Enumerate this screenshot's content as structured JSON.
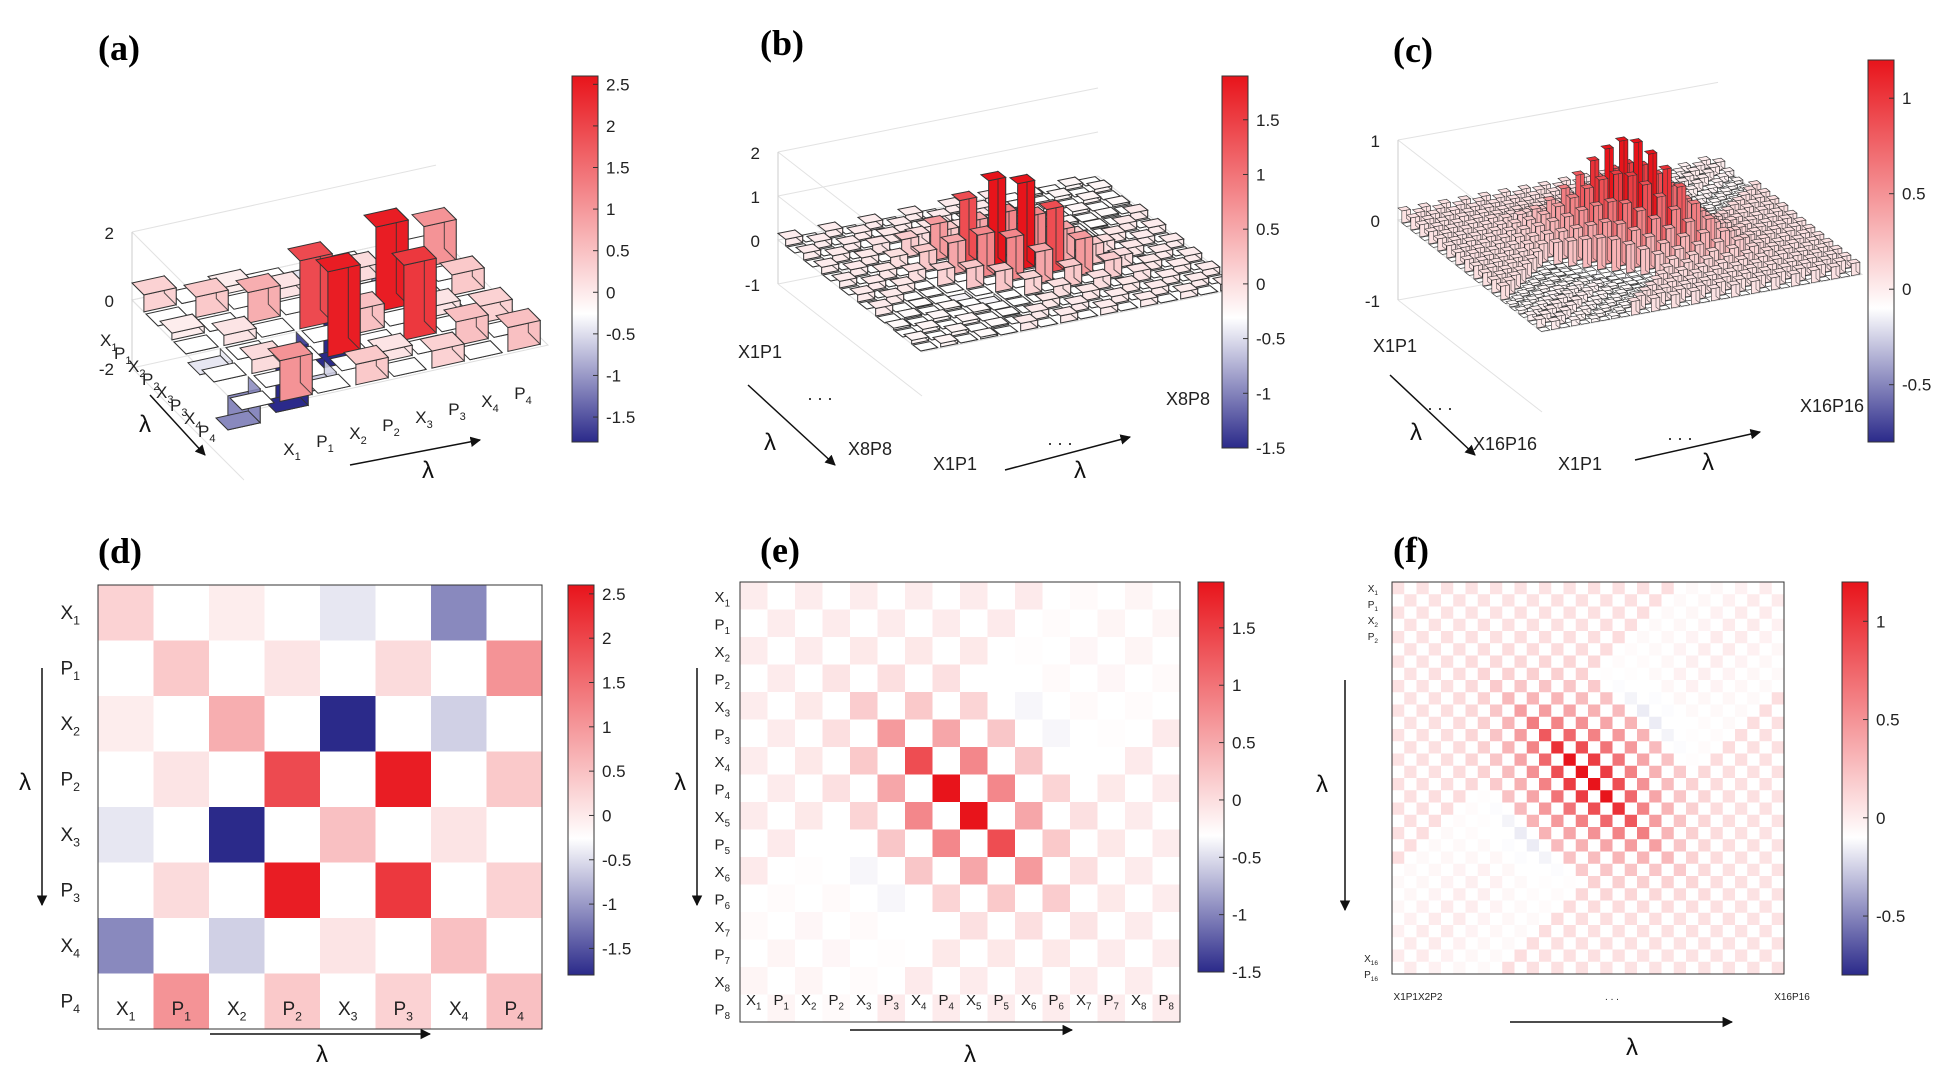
{
  "figure_title": "",
  "chart_data": [
    {
      "panel": "(a)",
      "type": "bar3d",
      "labels": [
        "X1",
        "P1",
        "X2",
        "P2",
        "X3",
        "P3",
        "X4",
        "P4"
      ],
      "zticks": [
        "-2",
        "0",
        "2"
      ],
      "zlim": [
        -2,
        2.6
      ],
      "colorbar": {
        "ticks": [
          "2.5",
          "2",
          "1.5",
          "1",
          "0.5",
          "0",
          "-0.5",
          "-1",
          "-1.5"
        ],
        "range": [
          -1.8,
          2.6
        ]
      },
      "values": [
        [
          0.5,
          0,
          0.2,
          0,
          -0.2,
          0,
          -1.0,
          0
        ],
        [
          0,
          0.6,
          0,
          0.3,
          0,
          0.4,
          0,
          1.2
        ],
        [
          0.2,
          0,
          0.9,
          0,
          -1.8,
          0,
          -0.4,
          0
        ],
        [
          0,
          0.3,
          0,
          2.0,
          0,
          2.5,
          0,
          0.6
        ],
        [
          -0.2,
          0,
          -1.8,
          0,
          0.7,
          0,
          0.3,
          0
        ],
        [
          0,
          0.4,
          0,
          2.5,
          0,
          2.2,
          0,
          0.5
        ],
        [
          -1.0,
          0,
          -0.4,
          0,
          0.3,
          0,
          0.7,
          0
        ],
        [
          0,
          1.2,
          0,
          0.6,
          0,
          0.5,
          0,
          0.7
        ]
      ]
    },
    {
      "panel": "(b)",
      "type": "bar3d",
      "n": 16,
      "zticks": [
        "-1",
        "0",
        "1",
        "2"
      ],
      "colorbar": {
        "ticks": [
          "1.5",
          "1",
          "0.5",
          "0",
          "-0.5",
          "-1",
          "-1.5"
        ],
        "range": [
          -1.5,
          1.9
        ]
      },
      "xlabels": [
        "X1P1",
        ". . .",
        "X8P8"
      ]
    },
    {
      "panel": "(c)",
      "type": "bar3d",
      "n": 32,
      "zticks": [
        "-1",
        "0",
        "1"
      ],
      "colorbar": {
        "ticks": [
          "1",
          "0.5",
          "0",
          "-0.5"
        ],
        "range": [
          -0.8,
          1.2
        ]
      },
      "xlabels": [
        "X1P1",
        ". . .",
        "X16P16"
      ]
    },
    {
      "panel": "(d)",
      "type": "heatmap",
      "n": 8,
      "labels": [
        "X1",
        "P1",
        "X2",
        "P2",
        "X3",
        "P3",
        "X4",
        "P4"
      ],
      "colorbar": {
        "ticks": [
          "2.5",
          "2",
          "1.5",
          "1",
          "0.5",
          "0",
          "-0.5",
          "-1",
          "-1.5"
        ],
        "range": [
          -1.8,
          2.6
        ]
      }
    },
    {
      "panel": "(e)",
      "type": "heatmap",
      "n": 16,
      "labels": [
        "X1",
        "P1",
        "X2",
        "P2",
        "X3",
        "P3",
        "X4",
        "P4",
        "X5",
        "P5",
        "X6",
        "P6",
        "X7",
        "P7",
        "X8",
        "P8"
      ],
      "colorbar": {
        "ticks": [
          "1.5",
          "1",
          "0.5",
          "0",
          "-0.5",
          "-1",
          "-1.5"
        ],
        "range": [
          -1.5,
          1.9
        ]
      }
    },
    {
      "panel": "(f)",
      "type": "heatmap",
      "n": 32,
      "ylabels_top": [
        "X1",
        "P1",
        "X2",
        "P2"
      ],
      "ylabels_bottom": [
        "X16",
        "P16"
      ],
      "xlabels": [
        "X1P1X2P2",
        ". . .",
        "X16P16"
      ],
      "colorbar": {
        "ticks": [
          "1",
          "0.5",
          "0",
          "-0.5"
        ],
        "range": [
          -0.8,
          1.2
        ]
      }
    }
  ],
  "axis_symbol": "λ"
}
